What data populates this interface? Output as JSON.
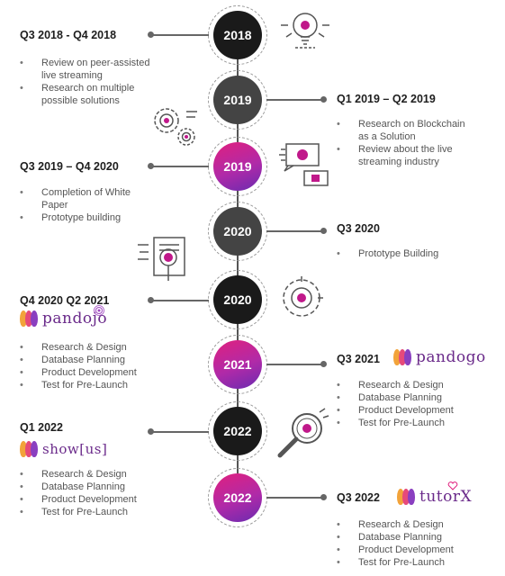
{
  "milestones": [
    {
      "year": "2018"
    },
    {
      "year": "2019"
    },
    {
      "year": "2019"
    },
    {
      "year": "2020"
    },
    {
      "year": "2020"
    },
    {
      "year": "2021"
    },
    {
      "year": "2022"
    },
    {
      "year": "2022"
    }
  ],
  "entries": {
    "q3_2018": {
      "title": "Q3 2018 - Q4 2018",
      "items": [
        "Review on peer-assisted live streaming",
        "Research on multiple possible solutions"
      ]
    },
    "q1_2019": {
      "title": "Q1 2019 – Q2 2019",
      "items": [
        "Research on Blockchain as a Solution",
        "Review about the live streaming industry"
      ]
    },
    "q3_2019": {
      "title": "Q3 2019 – Q4 2020",
      "items": [
        "Completion of White Paper",
        "Prototype building"
      ]
    },
    "q3_2020": {
      "title": "Q3 2020",
      "items": [
        "Prototype Building"
      ]
    },
    "q4_2020": {
      "title": "Q4 2020 Q2 2021",
      "logo": "pandojo",
      "items": [
        "Research & Design",
        "Database Planning",
        "Product Development",
        "Test for Pre-Launch"
      ]
    },
    "q3_2021": {
      "title": "Q3 2021",
      "logo": "pandogo",
      "items": [
        "Research & Design",
        "Database Planning",
        "Product Development",
        "Test for Pre-Launch"
      ]
    },
    "q1_2022": {
      "title": "Q1 2022",
      "logo": "show[us]",
      "items": [
        "Research & Design",
        "Database Planning",
        "Product Development",
        "Test for Pre-Launch"
      ]
    },
    "q3_2022": {
      "title": "Q3 2022",
      "logo": "tutorX",
      "items": [
        "Research & Design",
        "Database Planning",
        "Product Development",
        "Test for Pre-Launch"
      ]
    }
  },
  "colors": {
    "dark": "#1a1a1a",
    "grey": "#444444",
    "gradient_start": "#e0207e",
    "gradient_end": "#6a2bb0",
    "accent": "#c0188a"
  },
  "icons": [
    "lightbulb-icon",
    "gears-icon",
    "presentation-screen-icon",
    "clipboard-icon",
    "target-icon",
    "magnifier-icon"
  ]
}
